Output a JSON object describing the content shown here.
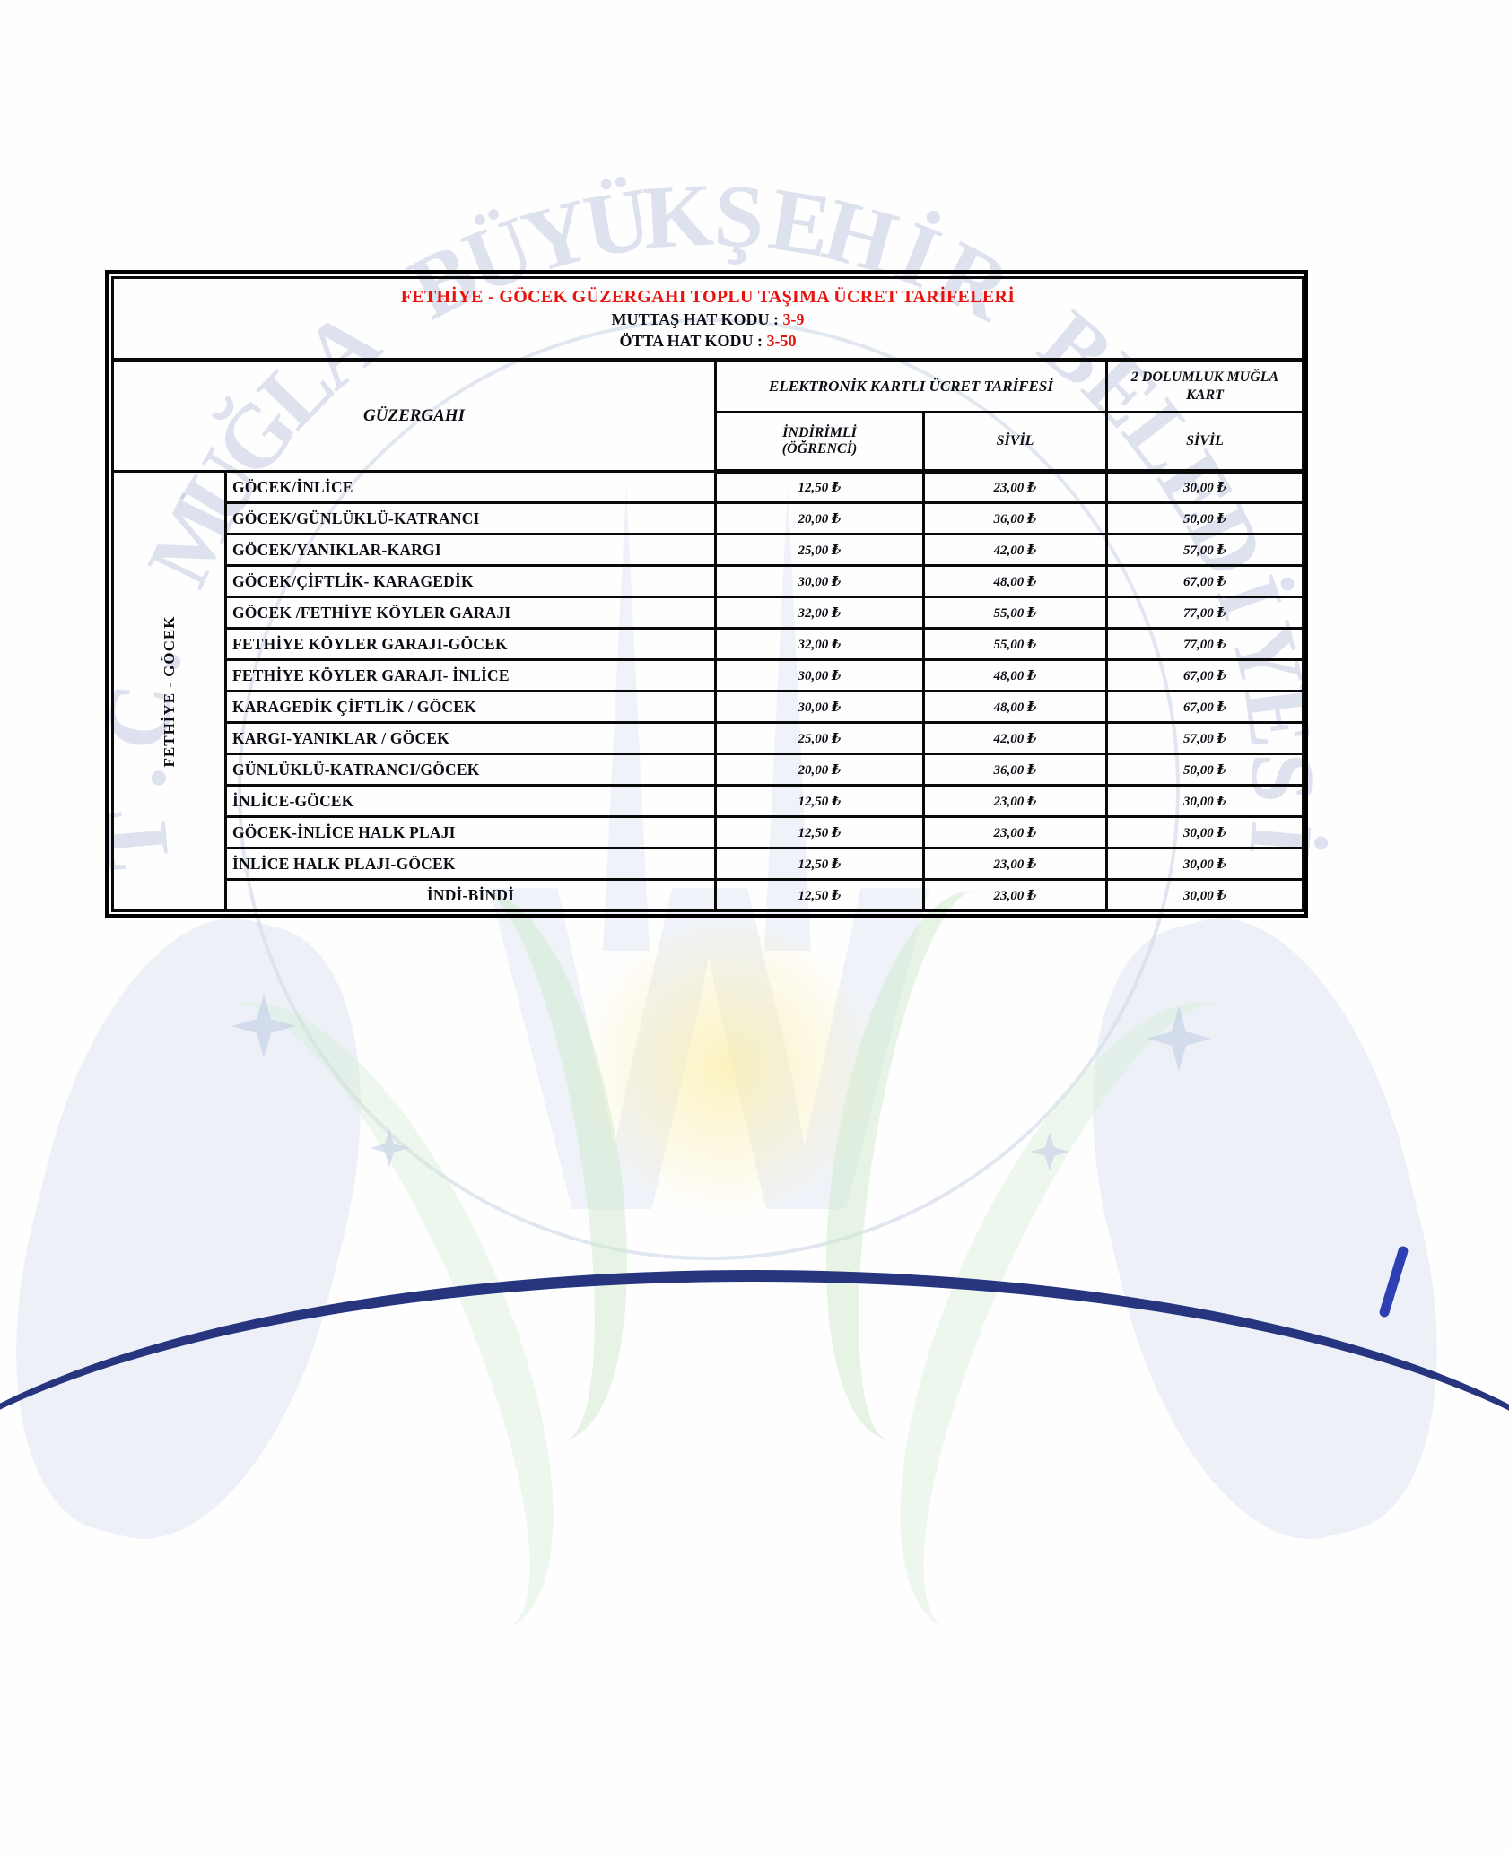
{
  "colors": {
    "accent_red": "#e8120e",
    "border_black": "#000000",
    "watermark_blue": "#a7b6d4",
    "watermark_green": "#cde8c8",
    "watermark_navy": "#27357f"
  },
  "watermark": {
    "arc_text": "T.C. MUĞLA BÜYÜKŞEHİR BELEDİYESİ"
  },
  "title_block": {
    "title": "FETHİYE - GÖCEK GÜZERGAHI TOPLU TAŞIMA ÜCRET TARİFELERİ",
    "muttas_label": "MUTTAŞ HAT KODU : ",
    "muttas_code": "3-9",
    "otta_label": "ÖTTA HAT KODU : ",
    "otta_code": "3-50"
  },
  "table": {
    "group_label": "FETHİYE - GÖCEK",
    "col_route": "GÜZERGAHI",
    "col_electronic_group": "ELEKTRONİK KARTLI ÜCRET TARİFESİ",
    "col_discount_line1": "İNDİRİMLİ",
    "col_discount_line2": "(ÖĞRENCİ)",
    "col_civil": "SİVİL",
    "col_mugla_line1": "2 DOLUMLUK MUĞLA",
    "col_mugla_line2": "KART",
    "col_mugla_civil": "SİVİL",
    "rows": [
      {
        "route": "GÖCEK/İNLİCE",
        "discount": "12,50 ₺",
        "civil": "23,00 ₺",
        "mugla": "30,00 ₺"
      },
      {
        "route": "GÖCEK/GÜNLÜKLÜ-KATRANCI",
        "discount": "20,00 ₺",
        "civil": "36,00 ₺",
        "mugla": "50,00 ₺"
      },
      {
        "route": "GÖCEK/YANIKLAR-KARGI",
        "discount": "25,00 ₺",
        "civil": "42,00 ₺",
        "mugla": "57,00 ₺"
      },
      {
        "route": "GÖCEK/ÇİFTLİK- KARAGEDİK",
        "discount": "30,00 ₺",
        "civil": "48,00 ₺",
        "mugla": "67,00 ₺"
      },
      {
        "route": "GÖCEK /FETHİYE KÖYLER GARAJI",
        "discount": "32,00 ₺",
        "civil": "55,00 ₺",
        "mugla": "77,00 ₺"
      },
      {
        "route": "FETHİYE KÖYLER GARAJI-GÖCEK",
        "discount": "32,00 ₺",
        "civil": "55,00 ₺",
        "mugla": "77,00 ₺"
      },
      {
        "route": "FETHİYE KÖYLER GARAJI- İNLİCE",
        "discount": "30,00 ₺",
        "civil": "48,00 ₺",
        "mugla": "67,00 ₺"
      },
      {
        "route": "KARAGEDİK ÇİFTLİK / GÖCEK",
        "discount": "30,00 ₺",
        "civil": "48,00 ₺",
        "mugla": "67,00 ₺"
      },
      {
        "route": "KARGI-YANIKLAR / GÖCEK",
        "discount": "25,00 ₺",
        "civil": "42,00 ₺",
        "mugla": "57,00 ₺"
      },
      {
        "route": "GÜNLÜKLÜ-KATRANCI/GÖCEK",
        "discount": "20,00 ₺",
        "civil": "36,00 ₺",
        "mugla": "50,00 ₺"
      },
      {
        "route": "İNLİCE-GÖCEK",
        "discount": "12,50 ₺",
        "civil": "23,00 ₺",
        "mugla": "30,00 ₺"
      },
      {
        "route": "GÖCEK-İNLİCE HALK PLAJI",
        "discount": "12,50 ₺",
        "civil": "23,00 ₺",
        "mugla": "30,00 ₺"
      },
      {
        "route": "İNLİCE HALK PLAJI-GÖCEK",
        "discount": "12,50 ₺",
        "civil": "23,00 ₺",
        "mugla": "30,00 ₺"
      },
      {
        "route": "İNDİ-BİNDİ",
        "center": true,
        "discount": "12,50 ₺",
        "civil": "23,00 ₺",
        "mugla": "30,00 ₺"
      }
    ]
  }
}
